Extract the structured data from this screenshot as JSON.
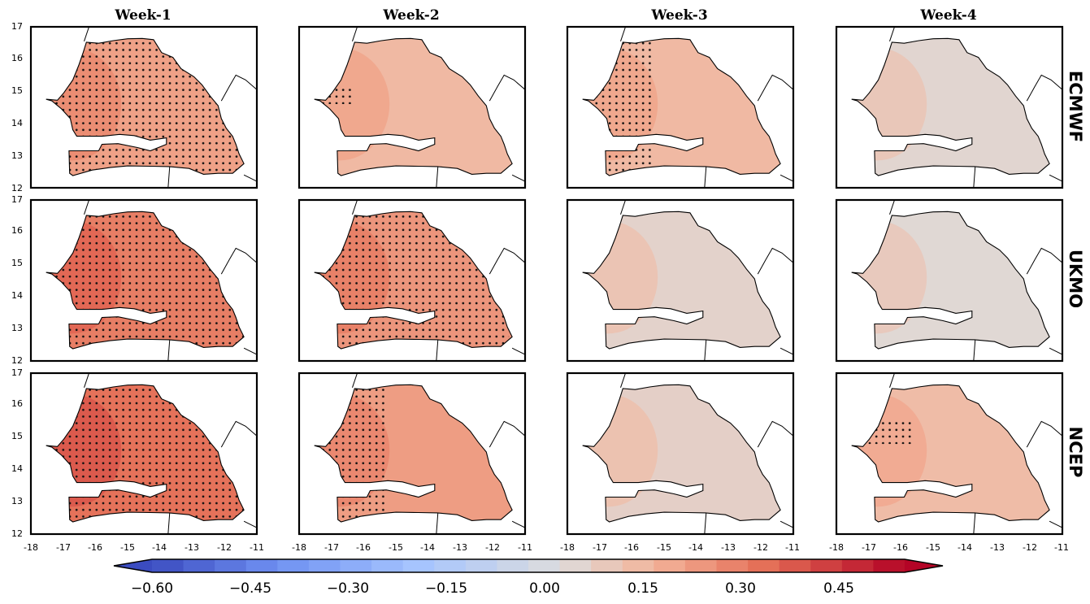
{
  "figure": {
    "columns": [
      "Week-1",
      "Week-2",
      "Week-3",
      "Week-4"
    ],
    "rows": [
      "ECMWF",
      "UKMO",
      "NCEP"
    ],
    "x_ticks": [
      "-18",
      "-17",
      "-16",
      "-15",
      "-14",
      "-13",
      "-12",
      "-11"
    ],
    "y_ticks": [
      "12",
      "13",
      "14",
      "15",
      "16",
      "17"
    ],
    "x_range": [
      -18,
      -11
    ],
    "y_range": [
      12,
      17
    ],
    "panel_level": [
      [
        0.2,
        0.13,
        0.13,
        0.03
      ],
      [
        0.29,
        0.23,
        0.04,
        0.02
      ],
      [
        0.32,
        0.21,
        0.05,
        0.12
      ]
    ],
    "stippled": [
      [
        "most",
        "scattered",
        "west",
        "none"
      ],
      [
        "all",
        "most",
        "none",
        "none"
      ],
      [
        "all",
        "west",
        "none",
        "patches"
      ]
    ]
  },
  "colorbar": {
    "range": [
      -0.65,
      0.55
    ],
    "levels": 24,
    "extend": "both",
    "ticks": [
      "−0.60",
      "−0.45",
      "−0.30",
      "−0.15",
      "0.00",
      "0.15",
      "0.30",
      "0.45"
    ],
    "tick_values": [
      -0.6,
      -0.45,
      -0.3,
      -0.15,
      0.0,
      0.15,
      0.3,
      0.45
    ],
    "colormap": "coolwarm",
    "color_low": "#3b4cc0",
    "color_mid": "#dddddd",
    "color_high": "#b40426"
  }
}
